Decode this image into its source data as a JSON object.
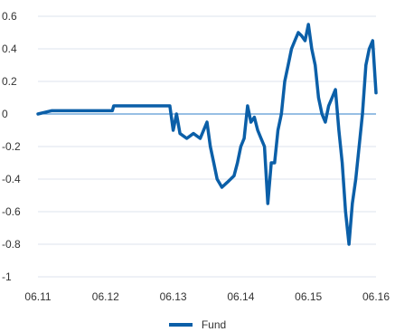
{
  "chart_data": {
    "type": "line",
    "title": "",
    "xlabel": "",
    "ylabel": "",
    "ylim": [
      -1,
      0.6
    ],
    "yticks": [
      "0.6",
      "0.4",
      "0.2",
      "0",
      "-0.2",
      "-0.4",
      "-0.6",
      "-0.8",
      "-1"
    ],
    "ytick_values": [
      0.6,
      0.4,
      0.2,
      0,
      -0.2,
      -0.4,
      -0.6,
      -0.8,
      -1
    ],
    "xlim": [
      0,
      5
    ],
    "xticks": [
      "06.11",
      "06.12",
      "06.13",
      "06.14",
      "06.15",
      "06.16"
    ],
    "xtick_values": [
      0,
      1,
      2,
      3,
      4,
      5
    ],
    "grid": true,
    "legend_position": "bottom-center",
    "series": [
      {
        "name": "Fund",
        "color": "#0b5fa8",
        "x": [
          0,
          0.1,
          0.2,
          0.4,
          0.8,
          1.1,
          1.12,
          1.5,
          1.95,
          2.0,
          2.05,
          2.1,
          2.2,
          2.3,
          2.4,
          2.5,
          2.55,
          2.6,
          2.65,
          2.72,
          2.8,
          2.9,
          2.95,
          3.0,
          3.05,
          3.1,
          3.15,
          3.2,
          3.25,
          3.3,
          3.35,
          3.4,
          3.45,
          3.5,
          3.55,
          3.6,
          3.65,
          3.7,
          3.75,
          3.8,
          3.85,
          3.9,
          3.95,
          4.0,
          4.05,
          4.1,
          4.15,
          4.2,
          4.25,
          4.3,
          4.35,
          4.4,
          4.45,
          4.5,
          4.55,
          4.6,
          4.65,
          4.7,
          4.75,
          4.8,
          4.85,
          4.9,
          4.95,
          5.0
        ],
        "y": [
          0.0,
          0.01,
          0.02,
          0.02,
          0.02,
          0.02,
          0.05,
          0.05,
          0.05,
          -0.1,
          0.0,
          -0.12,
          -0.15,
          -0.12,
          -0.15,
          -0.05,
          -0.2,
          -0.3,
          -0.4,
          -0.45,
          -0.42,
          -0.38,
          -0.3,
          -0.2,
          -0.15,
          0.05,
          -0.05,
          -0.02,
          -0.1,
          -0.15,
          -0.2,
          -0.55,
          -0.3,
          -0.3,
          -0.1,
          0.0,
          0.2,
          0.3,
          0.4,
          0.45,
          0.5,
          0.48,
          0.45,
          0.55,
          0.4,
          0.3,
          0.1,
          0.0,
          -0.05,
          0.05,
          0.1,
          0.15,
          -0.1,
          -0.3,
          -0.6,
          -0.8,
          -0.55,
          -0.4,
          -0.2,
          0.0,
          0.3,
          0.4,
          0.45,
          0.13
        ]
      }
    ]
  },
  "legend": {
    "label": "Fund"
  }
}
